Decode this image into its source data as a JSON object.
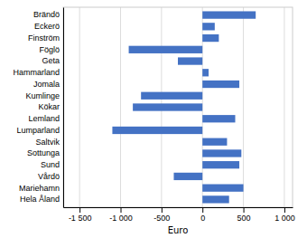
{
  "chart_data": {
    "type": "bar",
    "orientation": "horizontal",
    "categories": [
      "Brändö",
      "Eckerö",
      "Finström",
      "Föglö",
      "Geta",
      "Hammarland",
      "Jomala",
      "Kumlinge",
      "Kökar",
      "Lemland",
      "Lumparland",
      "Saltvik",
      "Sottunga",
      "Sund",
      "Vårdö",
      "Mariehamn",
      "Hela Åland"
    ],
    "values": [
      650,
      150,
      200,
      -900,
      -300,
      75,
      450,
      -750,
      -850,
      400,
      -1100,
      300,
      475,
      450,
      -350,
      500,
      325
    ],
    "color": "#4472C4",
    "xlim": [
      -1700,
      1100
    ],
    "xticks": [
      {
        "value": -1500,
        "label": "-1 500"
      },
      {
        "value": -1000,
        "label": "-1 000"
      },
      -500,
      0,
      500,
      {
        "value": 1000,
        "label": "1 000"
      }
    ],
    "xlabel": "Euro",
    "grid": true
  }
}
